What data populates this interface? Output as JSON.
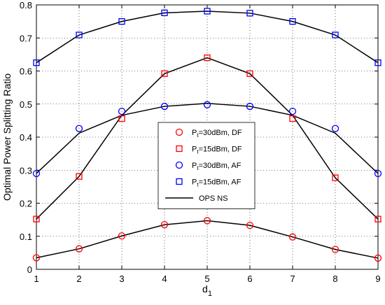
{
  "chart_data": {
    "type": "line",
    "title": "",
    "xlabel": "d",
    "xlabel_sub": "1",
    "ylabel": "Optimal Power Splitting Ratio",
    "xlim": [
      1,
      9
    ],
    "ylim": [
      0,
      0.8
    ],
    "x_ticks": [
      "1",
      "2",
      "3",
      "4",
      "5",
      "6",
      "7",
      "8",
      "9"
    ],
    "y_ticks": [
      "0",
      "0.1",
      "0.2",
      "0.3",
      "0.4",
      "0.5",
      "0.6",
      "0.7",
      "0.8"
    ],
    "grid": true,
    "legend_position": "center-right",
    "x": [
      1,
      2,
      3,
      4,
      5,
      6,
      7,
      8,
      9
    ],
    "series": [
      {
        "legend_prefix": "P",
        "legend_sub": "t",
        "legend_suffix": "=30dBm, DF",
        "marker": "circle",
        "color": "#ff0000",
        "values": [
          0.035,
          0.062,
          0.101,
          0.135,
          0.147,
          0.133,
          0.098,
          0.06,
          0.034
        ]
      },
      {
        "legend_prefix": "P",
        "legend_sub": "t",
        "legend_suffix": "=15dBm, DF",
        "marker": "square",
        "color": "#ff0000",
        "values": [
          0.152,
          0.281,
          0.456,
          0.592,
          0.64,
          0.592,
          0.456,
          0.277,
          0.152
        ]
      },
      {
        "legend_prefix": "P",
        "legend_sub": "t",
        "legend_suffix": "=30dBm, AF",
        "marker": "circle",
        "color": "#0000ff",
        "values": [
          0.29,
          0.426,
          0.478,
          0.493,
          0.498,
          0.493,
          0.478,
          0.426,
          0.29
        ]
      },
      {
        "legend_prefix": "P",
        "legend_sub": "t",
        "legend_suffix": "=15dBm, AF",
        "marker": "square",
        "color": "#0000ff",
        "values": [
          0.625,
          0.709,
          0.75,
          0.776,
          0.781,
          0.775,
          0.75,
          0.709,
          0.625
        ]
      }
    ],
    "lines": [
      {
        "name": "OPS NS",
        "color": "#000000",
        "values": [
          0.035,
          0.062,
          0.101,
          0.135,
          0.147,
          0.133,
          0.098,
          0.06,
          0.034
        ]
      },
      {
        "color": "#000000",
        "values": [
          0.152,
          0.281,
          0.466,
          0.592,
          0.64,
          0.592,
          0.466,
          0.277,
          0.152
        ]
      },
      {
        "color": "#000000",
        "values": [
          0.29,
          0.412,
          0.466,
          0.493,
          0.502,
          0.493,
          0.466,
          0.412,
          0.29
        ]
      },
      {
        "color": "#000000",
        "values": [
          0.625,
          0.709,
          0.75,
          0.776,
          0.781,
          0.775,
          0.75,
          0.709,
          0.625
        ]
      }
    ]
  }
}
